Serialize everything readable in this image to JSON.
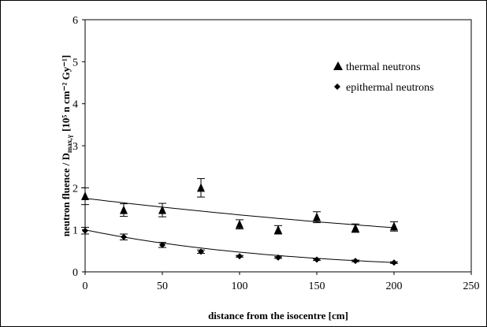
{
  "chart_data": {
    "type": "scatter",
    "xlabel": "distance from the isocentre [cm]",
    "ylabel_main": "neutron fluence / D",
    "ylabel_sub": "max,γ",
    "ylabel_units": "[10⁵ n cm⁻² Gy⁻¹]",
    "xlim": [
      0,
      250
    ],
    "ylim": [
      0,
      6
    ],
    "x_ticks": [
      "0",
      "50",
      "100",
      "150",
      "200",
      "250"
    ],
    "y_ticks": [
      "0",
      "1",
      "2",
      "3",
      "4",
      "5",
      "6"
    ],
    "grid": false,
    "legend_placement": "right",
    "series": [
      {
        "name": "thermal neutrons",
        "marker": "triangle",
        "x": [
          0,
          25,
          50,
          75,
          100,
          125,
          150,
          175,
          200
        ],
        "y": [
          1.8,
          1.47,
          1.47,
          2.0,
          1.13,
          1.0,
          1.3,
          1.04,
          1.08
        ],
        "err": [
          0.2,
          0.15,
          0.16,
          0.22,
          0.11,
          0.1,
          0.13,
          0.1,
          0.11
        ],
        "fit": {
          "x": [
            0,
            200
          ],
          "y0": 1.75,
          "y1": 1.05
        }
      },
      {
        "name": "epithermal neutrons",
        "marker": "diamond",
        "x": [
          0,
          25,
          50,
          75,
          100,
          125,
          150,
          175,
          200
        ],
        "y": [
          0.98,
          0.83,
          0.64,
          0.48,
          0.37,
          0.34,
          0.29,
          0.26,
          0.22
        ],
        "err": [
          0.08,
          0.07,
          0.06,
          0.04,
          0.02,
          0.02,
          0.02,
          0.02,
          0.02
        ],
        "fit": {
          "x": [
            0,
            200
          ],
          "y0": 1.0,
          "y1": 0.22
        }
      }
    ]
  }
}
